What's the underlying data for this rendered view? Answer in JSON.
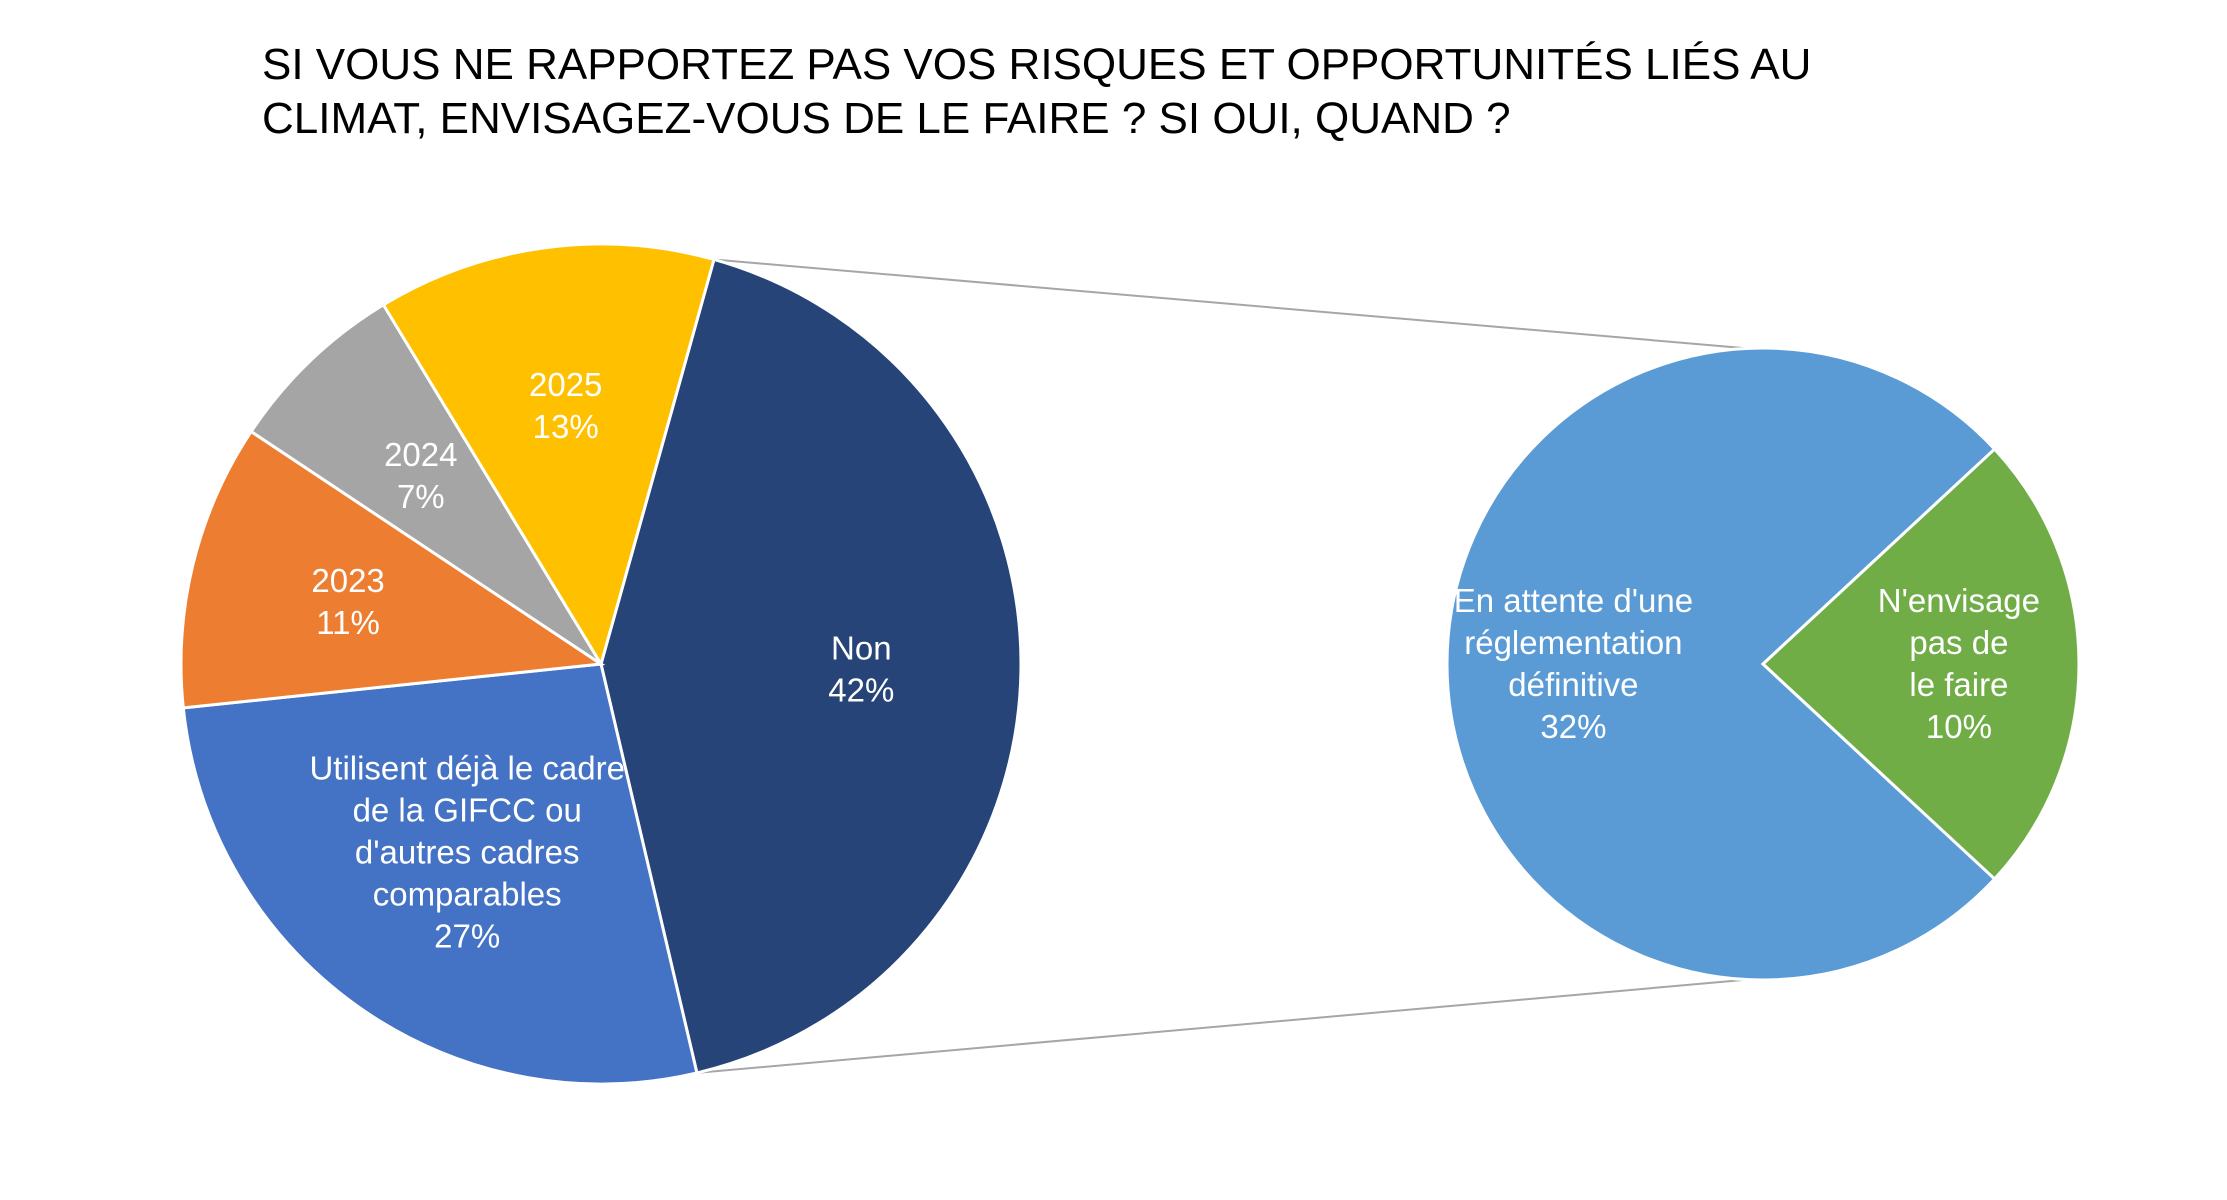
{
  "chart_data": {
    "type": "pie",
    "subtype": "pie-of-pie",
    "title": "SI VOUS NE RAPPORTEZ PAS VOS RISQUES ET OPPORTUNITÉS LIÉS AU CLIMAT, ENVISAGEZ-VOUS DE LE FAIRE ? SI OUI, QUAND ?",
    "title_lines": [
      "SI VOUS NE RAPPORTEZ PAS VOS RISQUES ET OPPORTUNITÉS LIÉS AU",
      "CLIMAT, ENVISAGEZ-VOUS DE LE FAIRE ? SI OUI, QUAND ?"
    ],
    "main_pie": {
      "slices": [
        {
          "id": "non",
          "label_lines": [
            "Non"
          ],
          "value": 42,
          "display": "42%",
          "color": "#264478"
        },
        {
          "id": "cadre",
          "label_lines": [
            "Utilisent déjà le cadre",
            "de la GIFCC ou",
            "d'autres cadres",
            "comparables"
          ],
          "value": 27,
          "display": "27%",
          "color": "#4472C4"
        },
        {
          "id": "y2023",
          "label_lines": [
            "2023"
          ],
          "value": 11,
          "display": "11%",
          "color": "#ED7D31"
        },
        {
          "id": "y2024",
          "label_lines": [
            "2024"
          ],
          "value": 7,
          "display": "7%",
          "color": "#A5A5A5"
        },
        {
          "id": "y2025",
          "label_lines": [
            "2025"
          ],
          "value": 13,
          "display": "13%",
          "color": "#FFC000"
        }
      ]
    },
    "secondary_pie": {
      "expands": "non",
      "slices": [
        {
          "id": "attente",
          "label_lines": [
            "En attente d'une",
            "réglementation",
            "définitive"
          ],
          "value": 32,
          "display": "32%",
          "color": "#5B9BD5"
        },
        {
          "id": "nenvisage",
          "label_lines": [
            "N'envisage",
            "pas de",
            "le faire"
          ],
          "value": 10,
          "display": "10%",
          "color": "#70AD47"
        }
      ]
    },
    "connector_color": "#A6A6A6",
    "legend": "none"
  }
}
